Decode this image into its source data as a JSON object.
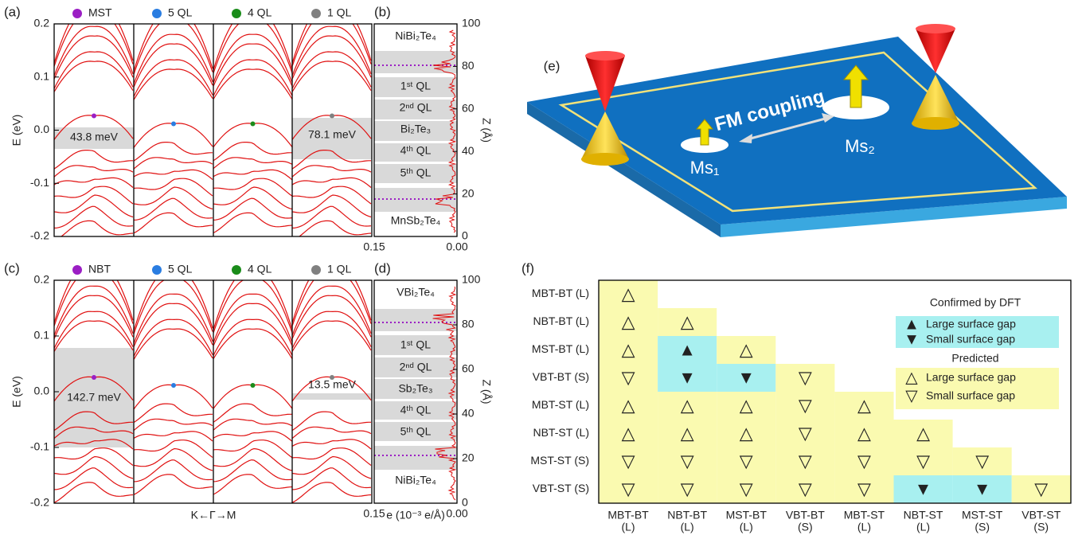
{
  "panel_a": {
    "label": "(a)",
    "legend": [
      "MST",
      "5 QL",
      "4 QL",
      "1 QL"
    ],
    "y_axis_label": "E (eV)",
    "y_ticks": [
      "0.2",
      "0.1",
      "0.0",
      "-0.1",
      "-0.2"
    ],
    "gap_labels": [
      "43.8 meV",
      "78.1 meV"
    ]
  },
  "panel_b": {
    "label": "(b)",
    "layers": [
      "NiBi₂Te₄",
      "1ˢᵗ QL",
      "2ⁿᵈ QL",
      "Bi₂Te₃",
      "4ᵗʰ QL",
      "5ᵗʰ QL",
      "MnSb₂Te₄"
    ],
    "z_axis_label": "Z (Å)",
    "z_ticks": [
      "0",
      "20",
      "40",
      "60",
      "80",
      "100"
    ],
    "x_ticks": [
      "0.15",
      "0.00"
    ]
  },
  "panel_c": {
    "label": "(c)",
    "legend": [
      "NBT",
      "5 QL",
      "4 QL",
      "1 QL"
    ],
    "y_axis_label": "E (eV)",
    "y_ticks": [
      "0.2",
      "0.1",
      "0.0",
      "-0.1",
      "-0.2"
    ],
    "gap_labels": [
      "142.7 meV",
      "13.5 meV"
    ],
    "x_axis_label": "K←Γ→M"
  },
  "panel_d": {
    "label": "(d)",
    "layers": [
      "VBi₂Te₄",
      "1ˢᵗ QL",
      "2ⁿᵈ QL",
      "Sb₂Te₃",
      "4ᵗʰ QL",
      "5ᵗʰ QL",
      "NiBi₂Te₄"
    ],
    "z_axis_label": "Z (Å)",
    "z_ticks": [
      "0",
      "20",
      "40",
      "60",
      "80",
      "100"
    ],
    "x_ticks": [
      "0.15",
      "0.00"
    ],
    "x_axis_label": "e (10⁻³ e/Å)"
  },
  "panel_e": {
    "label": "(e)",
    "coupling": "FM coupling",
    "moments": [
      "Ms₁",
      "Ms₂"
    ]
  },
  "panel_f": {
    "label": "(f)",
    "rows": [
      "MBT-BT (L)",
      "NBT-BT (L)",
      "MST-BT (L)",
      "VBT-BT (S)",
      "MBT-ST (L)",
      "NBT-ST (L)",
      "MST-ST (S)",
      "VBT-ST (S)"
    ],
    "columns": [
      [
        "MBT-BT",
        "(L)"
      ],
      [
        "NBT-BT",
        "(L)"
      ],
      [
        "MST-BT",
        "(L)"
      ],
      [
        "VBT-BT",
        "(S)"
      ],
      [
        "MBT-ST",
        "(L)"
      ],
      [
        "NBT-ST",
        "(L)"
      ],
      [
        "MST-ST",
        "(S)"
      ],
      [
        "VBT-ST",
        "(S)"
      ]
    ],
    "cells": [
      [
        "△"
      ],
      [
        "△",
        "△"
      ],
      [
        "△",
        "▲",
        "△"
      ],
      [
        "▽",
        "▼",
        "▼",
        "▽"
      ],
      [
        "△",
        "△",
        "△",
        "▽",
        "△"
      ],
      [
        "△",
        "△",
        "△",
        "▽",
        "△",
        "△"
      ],
      [
        "▽",
        "▽",
        "▽",
        "▽",
        "▽",
        "▽",
        "▽"
      ],
      [
        "▽",
        "▽",
        "▽",
        "▽",
        "▽",
        "▼",
        "▼",
        "▽"
      ]
    ],
    "legend": {
      "confirmed_title": "Confirmed by DFT",
      "confirmed": [
        {
          "symbol": "▲",
          "text": "Large surface gap"
        },
        {
          "symbol": "▼",
          "text": "Small surface gap"
        }
      ],
      "predicted_title": "Predicted",
      "predicted": [
        {
          "symbol": "△",
          "text": "Large surface gap"
        },
        {
          "symbol": "▽",
          "text": "Small surface gap"
        }
      ]
    }
  }
}
